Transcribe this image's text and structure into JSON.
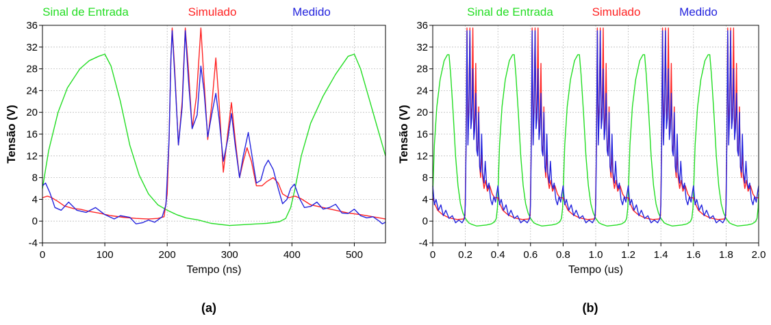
{
  "chart_data": [
    {
      "type": "line",
      "caption": "(a)",
      "xlabel": "Tempo (ns)",
      "ylabel": "Tensão (V)",
      "xlim": [
        0,
        550
      ],
      "ylim": [
        -4,
        36
      ],
      "xticks": [
        0,
        100,
        200,
        300,
        400,
        500
      ],
      "yticks": [
        -4,
        0,
        4,
        8,
        12,
        16,
        20,
        24,
        28,
        32,
        36
      ],
      "grid": true,
      "legend_position": "top",
      "series": [
        {
          "name": "Sinal de Entrada",
          "color": "#22dd22",
          "points": [
            [
              0,
              6
            ],
            [
              10,
              13
            ],
            [
              25,
              20
            ],
            [
              40,
              24.5
            ],
            [
              60,
              28
            ],
            [
              75,
              29.5
            ],
            [
              90,
              30.3
            ],
            [
              100,
              30.7
            ],
            [
              110,
              28.5
            ],
            [
              125,
              22
            ],
            [
              140,
              14
            ],
            [
              155,
              8.5
            ],
            [
              170,
              5
            ],
            [
              185,
              3
            ],
            [
              200,
              2
            ],
            [
              215,
              1.2
            ],
            [
              230,
              0.6
            ],
            [
              250,
              0.2
            ],
            [
              270,
              -0.4
            ],
            [
              300,
              -0.8
            ],
            [
              330,
              -0.6
            ],
            [
              360,
              -0.4
            ],
            [
              380,
              -0.1
            ],
            [
              390,
              0.5
            ],
            [
              398,
              2.5
            ],
            [
              405,
              6
            ],
            [
              415,
              12
            ],
            [
              430,
              18
            ],
            [
              450,
              23
            ],
            [
              470,
              27
            ],
            [
              490,
              30.3
            ],
            [
              500,
              30.7
            ],
            [
              510,
              28
            ],
            [
              525,
              22
            ],
            [
              540,
              16
            ],
            [
              550,
              12
            ]
          ]
        },
        {
          "name": "Simulado",
          "color": "#ff2222",
          "points": [
            [
              0,
              4.3
            ],
            [
              8,
              4.6
            ],
            [
              15,
              4.3
            ],
            [
              25,
              3.6
            ],
            [
              35,
              2.8
            ],
            [
              50,
              2.3
            ],
            [
              60,
              2.2
            ],
            [
              75,
              1.8
            ],
            [
              90,
              1.5
            ],
            [
              110,
              1
            ],
            [
              130,
              0.7
            ],
            [
              150,
              0.5
            ],
            [
              170,
              0.4
            ],
            [
              185,
              0.5
            ],
            [
              195,
              0.8
            ],
            [
              200,
              5
            ],
            [
              203,
              15
            ],
            [
              206,
              30
            ],
            [
              208,
              35.5
            ],
            [
              212,
              28
            ],
            [
              218,
              14
            ],
            [
              224,
              22
            ],
            [
              229,
              35.5
            ],
            [
              234,
              28
            ],
            [
              240,
              17
            ],
            [
              247,
              23
            ],
            [
              254,
              35.5
            ],
            [
              259,
              26
            ],
            [
              265,
              15
            ],
            [
              272,
              22
            ],
            [
              278,
              30
            ],
            [
              283,
              22
            ],
            [
              290,
              9
            ],
            [
              297,
              16
            ],
            [
              303,
              21.8
            ],
            [
              309,
              15
            ],
            [
              316,
              8
            ],
            [
              322,
              11
            ],
            [
              328,
              13.5
            ],
            [
              335,
              11
            ],
            [
              343,
              6.5
            ],
            [
              352,
              6.5
            ],
            [
              360,
              7.3
            ],
            [
              370,
              8
            ],
            [
              378,
              7
            ],
            [
              385,
              5
            ],
            [
              395,
              4.3
            ],
            [
              405,
              4.6
            ],
            [
              415,
              4.1
            ],
            [
              430,
              3
            ],
            [
              450,
              2.5
            ],
            [
              470,
              2
            ],
            [
              490,
              1.5
            ],
            [
              510,
              1.2
            ],
            [
              530,
              0.8
            ],
            [
              550,
              0.4
            ]
          ]
        },
        {
          "name": "Medido",
          "color": "#2222dd",
          "points": [
            [
              0,
              6.5
            ],
            [
              5,
              7
            ],
            [
              12,
              5.2
            ],
            [
              20,
              2.5
            ],
            [
              30,
              2
            ],
            [
              42,
              3.5
            ],
            [
              55,
              2
            ],
            [
              70,
              1.6
            ],
            [
              85,
              2.5
            ],
            [
              100,
              1.2
            ],
            [
              115,
              0.4
            ],
            [
              125,
              1
            ],
            [
              140,
              0.7
            ],
            [
              150,
              -0.5
            ],
            [
              160,
              -0.3
            ],
            [
              170,
              0.2
            ],
            [
              180,
              -0.2
            ],
            [
              192,
              0.8
            ],
            [
              198,
              3
            ],
            [
              203,
              15
            ],
            [
              206,
              30
            ],
            [
              208,
              35
            ],
            [
              213,
              25
            ],
            [
              218,
              14
            ],
            [
              224,
              21
            ],
            [
              229,
              35
            ],
            [
              234,
              26
            ],
            [
              240,
              17
            ],
            [
              248,
              19.5
            ],
            [
              254,
              28.5
            ],
            [
              259,
              24
            ],
            [
              265,
              15.5
            ],
            [
              272,
              20
            ],
            [
              278,
              23.5
            ],
            [
              283,
              19
            ],
            [
              290,
              11
            ],
            [
              297,
              15
            ],
            [
              303,
              19.8
            ],
            [
              309,
              14
            ],
            [
              316,
              8
            ],
            [
              322,
              12
            ],
            [
              330,
              16.3
            ],
            [
              336,
              12
            ],
            [
              343,
              7
            ],
            [
              350,
              7.5
            ],
            [
              356,
              10
            ],
            [
              362,
              11.2
            ],
            [
              370,
              9.5
            ],
            [
              378,
              6
            ],
            [
              385,
              3.2
            ],
            [
              392,
              4
            ],
            [
              398,
              6
            ],
            [
              404,
              6.8
            ],
            [
              412,
              4.2
            ],
            [
              420,
              2.5
            ],
            [
              430,
              2.7
            ],
            [
              440,
              3.5
            ],
            [
              450,
              2.2
            ],
            [
              460,
              2.5
            ],
            [
              470,
              3.1
            ],
            [
              480,
              1.5
            ],
            [
              490,
              1.4
            ],
            [
              500,
              2.2
            ],
            [
              510,
              1
            ],
            [
              520,
              0.6
            ],
            [
              530,
              0.8
            ],
            [
              540,
              0
            ],
            [
              545,
              -0.5
            ],
            [
              550,
              -0.2
            ]
          ]
        }
      ]
    },
    {
      "type": "line",
      "caption": "(b)",
      "xlabel": "Tempo (us)",
      "ylabel": "Tensão (V)",
      "xlim": [
        0,
        2.0
      ],
      "ylim": [
        -4,
        36
      ],
      "xticks": [
        0,
        0.2,
        0.4,
        0.6,
        0.8,
        1.0,
        1.2,
        1.4,
        1.6,
        1.8,
        2.0
      ],
      "xticklabels": [
        "0",
        "0.2",
        "0.4",
        "0.6",
        "0.8",
        "1.0",
        "1.2",
        "1.4",
        "1.6",
        "1.8",
        "2.0"
      ],
      "yticks": [
        -4,
        0,
        4,
        8,
        12,
        16,
        20,
        24,
        28,
        32,
        36
      ],
      "grid": true,
      "legend_position": "top",
      "period_us": 0.4,
      "series": [
        {
          "name": "Sinal de Entrada",
          "color": "#22dd22",
          "period_points": [
            [
              0,
              5
            ],
            [
              0.01,
              14
            ],
            [
              0.025,
              21
            ],
            [
              0.045,
              26
            ],
            [
              0.07,
              29.5
            ],
            [
              0.09,
              30.6
            ],
            [
              0.1,
              30.6
            ],
            [
              0.11,
              27
            ],
            [
              0.125,
              20
            ],
            [
              0.14,
              12
            ],
            [
              0.155,
              6.5
            ],
            [
              0.17,
              3.2
            ],
            [
              0.185,
              1.5
            ],
            [
              0.2,
              0.5
            ],
            [
              0.22,
              -0.3
            ],
            [
              0.24,
              -0.6
            ],
            [
              0.27,
              -0.9
            ],
            [
              0.3,
              -0.8
            ],
            [
              0.33,
              -0.7
            ],
            [
              0.36,
              -0.5
            ],
            [
              0.38,
              -0.1
            ],
            [
              0.39,
              0.5
            ],
            [
              0.397,
              2.5
            ],
            [
              0.4,
              5
            ]
          ]
        },
        {
          "name": "Simulado",
          "color": "#ff2222",
          "period_points": [
            [
              0,
              4.3
            ],
            [
              0.015,
              3
            ],
            [
              0.03,
              2
            ],
            [
              0.06,
              1.2
            ],
            [
              0.1,
              0.6
            ],
            [
              0.15,
              0.3
            ],
            [
              0.19,
              0.4
            ],
            [
              0.198,
              1
            ],
            [
              0.205,
              15
            ],
            [
              0.21,
              35.5
            ],
            [
              0.216,
              15
            ],
            [
              0.222,
              22
            ],
            [
              0.228,
              35.5
            ],
            [
              0.234,
              18
            ],
            [
              0.24,
              21
            ],
            [
              0.246,
              35.5
            ],
            [
              0.252,
              16
            ],
            [
              0.258,
              19
            ],
            [
              0.264,
              29
            ],
            [
              0.27,
              14
            ],
            [
              0.276,
              12
            ],
            [
              0.282,
              21
            ],
            [
              0.288,
              10
            ],
            [
              0.294,
              8
            ],
            [
              0.3,
              13
            ],
            [
              0.306,
              8
            ],
            [
              0.315,
              6
            ],
            [
              0.325,
              7.5
            ],
            [
              0.335,
              5.5
            ],
            [
              0.35,
              6.5
            ],
            [
              0.365,
              5
            ],
            [
              0.38,
              4.3
            ],
            [
              0.4,
              4.3
            ]
          ]
        },
        {
          "name": "Medido",
          "color": "#2222dd",
          "period_points": [
            [
              0,
              6.5
            ],
            [
              0.01,
              3
            ],
            [
              0.02,
              4
            ],
            [
              0.035,
              2
            ],
            [
              0.05,
              3
            ],
            [
              0.065,
              1
            ],
            [
              0.08,
              2
            ],
            [
              0.1,
              0.5
            ],
            [
              0.12,
              1
            ],
            [
              0.14,
              -0.3
            ],
            [
              0.16,
              0.2
            ],
            [
              0.18,
              -0.3
            ],
            [
              0.195,
              0.5
            ],
            [
              0.2,
              3
            ],
            [
              0.205,
              15
            ],
            [
              0.21,
              35
            ],
            [
              0.216,
              14
            ],
            [
              0.222,
              20
            ],
            [
              0.228,
              35
            ],
            [
              0.234,
              17
            ],
            [
              0.24,
              19
            ],
            [
              0.246,
              28
            ],
            [
              0.252,
              15
            ],
            [
              0.258,
              17
            ],
            [
              0.264,
              23.5
            ],
            [
              0.27,
              13
            ],
            [
              0.276,
              12
            ],
            [
              0.282,
              20
            ],
            [
              0.288,
              10
            ],
            [
              0.294,
              9
            ],
            [
              0.3,
              16
            ],
            [
              0.306,
              9
            ],
            [
              0.315,
              7
            ],
            [
              0.322,
              11
            ],
            [
              0.33,
              7
            ],
            [
              0.338,
              6
            ],
            [
              0.345,
              7
            ],
            [
              0.355,
              4
            ],
            [
              0.365,
              3
            ],
            [
              0.375,
              4.5
            ],
            [
              0.385,
              3.5
            ],
            [
              0.392,
              5
            ],
            [
              0.4,
              6.5
            ]
          ]
        }
      ]
    }
  ]
}
